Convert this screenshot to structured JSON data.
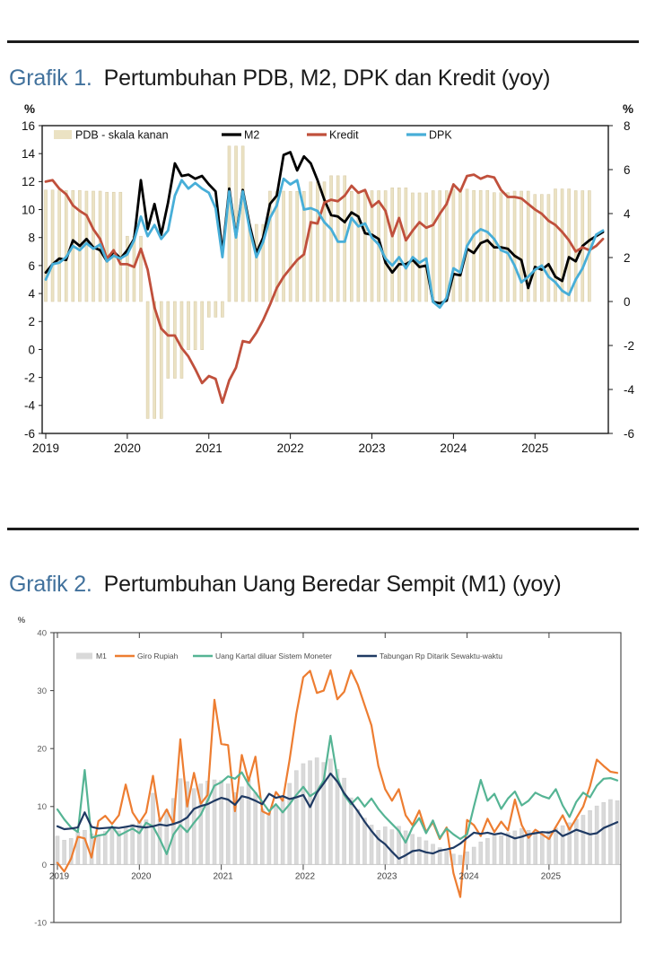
{
  "page": {
    "sections": [
      {
        "heading_prefix": "Grafik 1.",
        "heading": "Pertumbuhan PDB, M2, DPK dan Kredit (yoy)"
      },
      {
        "heading_prefix": "Grafik 2.",
        "heading": "Pertumbuhan Uang Beredar Sempit (M1) (yoy)"
      }
    ],
    "accent_color": "#41719c"
  },
  "chart_data": [
    {
      "type": "bar+line",
      "title": "Pertumbuhan PDB, M2, DPK dan Kredit (yoy)",
      "x_start": "2019-01",
      "x_freq": "monthly",
      "x_tick_labels": [
        "2019",
        "2020",
        "2021",
        "2022",
        "2023",
        "2024",
        "2025"
      ],
      "left_axis": {
        "label": "%",
        "min": -6,
        "max": 16,
        "tick_step": 2
      },
      "right_axis": {
        "label": "%",
        "min": -6,
        "max": 8,
        "tick_step": 2
      },
      "grid": false,
      "legend_position": "top-inside",
      "series": [
        {
          "name": "PDB - skala kanan",
          "type": "bar",
          "axis": "right",
          "freq": "quarterly",
          "color": "#ebe2c3",
          "edge_color": "#d9cdaa",
          "values": [
            5.07,
            5.05,
            5.02,
            4.97,
            2.97,
            -5.32,
            -3.49,
            -2.19,
            -0.71,
            7.07,
            3.51,
            5.02,
            5.01,
            5.44,
            5.72,
            5.01,
            5.04,
            5.17,
            4.94,
            5.04,
            5.11,
            5.05,
            4.95,
            5.02,
            4.87,
            5.12,
            5.04
          ]
        },
        {
          "name": "M2",
          "type": "line",
          "axis": "left",
          "color": "#000000",
          "values": [
            5.5,
            6.1,
            6.5,
            6.4,
            7.8,
            7.4,
            7.9,
            7.3,
            7.1,
            6.3,
            7.0,
            6.5,
            7.1,
            7.9,
            12.1,
            8.6,
            10.4,
            8.2,
            10.5,
            13.3,
            12.4,
            12.5,
            12.2,
            12.4,
            11.8,
            11.3,
            6.9,
            11.5,
            8.1,
            11.4,
            8.9,
            6.9,
            8.0,
            10.4,
            11.0,
            13.9,
            14.1,
            12.8,
            13.8,
            13.3,
            12.1,
            10.7,
            9.6,
            9.5,
            9.1,
            9.8,
            9.5,
            8.3,
            8.2,
            7.9,
            6.2,
            5.5,
            6.1,
            6.1,
            6.4,
            5.9,
            6.0,
            3.4,
            3.3,
            3.5,
            5.4,
            5.3,
            7.2,
            6.9,
            7.6,
            7.8,
            7.3,
            7.3,
            7.2,
            6.7,
            6.4,
            4.4,
            5.9,
            5.7,
            6.1,
            5.2,
            4.9,
            6.6,
            6.3,
            7.4,
            7.8,
            8.1,
            8.4
          ]
        },
        {
          "name": "Kredit",
          "type": "line",
          "axis": "left",
          "color": "#c0503c",
          "values": [
            12.0,
            12.1,
            11.5,
            11.1,
            10.3,
            9.9,
            9.6,
            8.6,
            7.9,
            6.5,
            7.1,
            6.1,
            6.1,
            5.9,
            7.2,
            5.7,
            3.0,
            1.5,
            1.0,
            1.0,
            0.1,
            -0.5,
            -1.4,
            -2.4,
            -1.9,
            -2.1,
            -3.8,
            -2.2,
            -1.3,
            0.6,
            0.5,
            1.2,
            2.1,
            3.2,
            4.4,
            5.2,
            5.8,
            6.4,
            6.8,
            9.1,
            9.0,
            10.5,
            10.7,
            10.6,
            11.0,
            11.7,
            11.2,
            11.4,
            10.2,
            10.6,
            9.9,
            8.1,
            9.4,
            7.8,
            8.5,
            9.1,
            8.7,
            8.9,
            9.7,
            10.4,
            11.8,
            11.3,
            12.4,
            12.5,
            12.2,
            12.4,
            12.3,
            11.4,
            10.9,
            10.9,
            10.8,
            10.4,
            10.0,
            9.7,
            9.2,
            8.9,
            8.4,
            7.8,
            7.0,
            7.3,
            7.1,
            7.4,
            7.9
          ]
        },
        {
          "name": "DPK",
          "type": "line",
          "axis": "left",
          "color": "#47aed8",
          "values": [
            5.0,
            6.1,
            6.2,
            6.6,
            7.4,
            7.1,
            7.6,
            7.2,
            7.5,
            6.3,
            6.7,
            6.5,
            6.8,
            7.8,
            9.5,
            8.1,
            8.9,
            7.9,
            8.5,
            11.0,
            12.1,
            11.5,
            11.9,
            11.5,
            11.2,
            10.1,
            6.6,
            11.3,
            8.0,
            11.3,
            8.6,
            6.6,
            7.7,
            9.4,
            10.3,
            12.2,
            11.8,
            12.1,
            10.0,
            10.1,
            9.9,
            9.1,
            8.6,
            7.7,
            7.7,
            9.4,
            8.8,
            9.0,
            8.0,
            7.5,
            6.5,
            6.0,
            6.6,
            5.8,
            6.6,
            6.2,
            6.5,
            3.4,
            3.0,
            3.7,
            5.8,
            5.5,
            7.4,
            8.2,
            8.6,
            8.4,
            7.9,
            7.1,
            6.9,
            6.0,
            4.8,
            5.2,
            5.7,
            6.0,
            5.2,
            4.8,
            4.2,
            3.9,
            5.0,
            5.8,
            7.0,
            8.2,
            8.5
          ]
        }
      ]
    },
    {
      "type": "bar+line",
      "title": "Pertumbuhan Uang Beredar Sempit (M1) (yoy)",
      "x_start": "2019-01",
      "x_freq": "monthly",
      "x_tick_labels": [
        "2019",
        "2020",
        "2021",
        "2022",
        "2023",
        "2024",
        "2025"
      ],
      "left_axis": {
        "label": "%",
        "min": -10,
        "max": 40,
        "tick_step": 10
      },
      "grid": false,
      "legend_position": "top-inside",
      "series": [
        {
          "name": "M1",
          "type": "bar",
          "axis": "left",
          "freq": "monthly",
          "color": "#d9d9d9",
          "edge_color": "#cfcfcf",
          "values": [
            4.9,
            4.2,
            4.5,
            5.6,
            5.9,
            5.3,
            5.1,
            5.7,
            6.0,
            5.8,
            6.6,
            7.0,
            7.4,
            7.7,
            12.3,
            7.8,
            9.4,
            11.4,
            14.8,
            14.3,
            13.1,
            13.9,
            14.4,
            14.6,
            14.5,
            13.9,
            12.4,
            13.4,
            14.7,
            12.4,
            9.6,
            8.9,
            10.1,
            11.2,
            14.0,
            16.2,
            17.4,
            17.9,
            18.4,
            17.6,
            18.2,
            16.4,
            14.9,
            11.5,
            9.5,
            8.0,
            6.8,
            5.9,
            6.5,
            6.0,
            6.6,
            5.8,
            5.2,
            4.7,
            4.1,
            3.5,
            2.9,
            2.3,
            1.8,
            1.6,
            2.2,
            3.0,
            3.9,
            4.5,
            5.2,
            5.0,
            5.5,
            5.8,
            6.2,
            5.9,
            5.6,
            5.3,
            5.8,
            6.3,
            6.7,
            7.2,
            7.8,
            8.5,
            9.3,
            10.1,
            10.7,
            11.2,
            11.0
          ]
        },
        {
          "name": "Giro Rupiah",
          "type": "line",
          "axis": "left",
          "color": "#ed7d31",
          "values": [
            0.3,
            -1.2,
            1.0,
            4.8,
            4.5,
            1.2,
            7.5,
            8.4,
            7.0,
            8.5,
            13.8,
            9.0,
            7.2,
            9.0,
            15.3,
            7.5,
            9.5,
            7.0,
            21.6,
            10.0,
            15.8,
            10.5,
            12.0,
            28.4,
            20.8,
            20.6,
            9.2,
            18.9,
            14.4,
            18.6,
            9.2,
            8.6,
            12.5,
            11.0,
            18.0,
            26.0,
            32.3,
            33.4,
            29.6,
            30.0,
            33.5,
            28.5,
            29.8,
            33.5,
            31.0,
            27.5,
            24.0,
            17.0,
            13.0,
            11.0,
            13.0,
            8.5,
            6.8,
            9.3,
            5.6,
            7.3,
            4.4,
            6.4,
            -1.5,
            -5.6,
            7.7,
            6.8,
            4.9,
            7.9,
            5.6,
            7.4,
            5.9,
            11.2,
            6.8,
            4.6,
            6.0,
            5.2,
            4.4,
            6.5,
            8.5,
            6.0,
            8.0,
            10.0,
            13.5,
            18.1,
            17.0,
            16.0,
            15.8
          ]
        },
        {
          "name": "Uang Kartal diluar Sistem Moneter",
          "type": "line",
          "axis": "left",
          "color": "#55b494",
          "values": [
            9.5,
            7.8,
            6.4,
            5.6,
            16.3,
            4.6,
            5.0,
            5.2,
            6.6,
            5.0,
            5.6,
            6.2,
            5.4,
            7.2,
            6.6,
            4.4,
            1.8,
            5.2,
            6.8,
            5.6,
            7.2,
            8.6,
            11.0,
            13.6,
            14.2,
            15.2,
            14.8,
            15.9,
            13.8,
            12.4,
            10.8,
            9.2,
            10.4,
            9.0,
            10.4,
            12.0,
            13.4,
            11.8,
            12.6,
            14.5,
            22.2,
            15.0,
            12.0,
            10.4,
            11.6,
            10.0,
            11.4,
            9.6,
            8.2,
            7.0,
            5.8,
            3.8,
            6.4,
            8.0,
            5.4,
            7.6,
            4.6,
            6.2,
            5.2,
            4.4,
            5.2,
            10.0,
            14.6,
            11.0,
            12.2,
            9.6,
            11.4,
            12.6,
            10.2,
            11.0,
            12.4,
            11.8,
            11.4,
            13.0,
            10.2,
            8.2,
            10.8,
            12.4,
            11.6,
            13.6,
            14.8,
            14.9,
            14.5
          ]
        },
        {
          "name": "Tabungan Rp Ditarik Sewaktu-waktu",
          "type": "line",
          "axis": "left",
          "color": "#1f3a63",
          "values": [
            6.6,
            6.1,
            6.2,
            6.4,
            9.0,
            6.5,
            6.2,
            6.3,
            6.4,
            6.3,
            6.5,
            6.7,
            6.5,
            6.4,
            6.6,
            6.9,
            6.7,
            7.0,
            7.4,
            8.1,
            9.6,
            10.1,
            10.4,
            11.0,
            11.5,
            11.2,
            10.3,
            11.8,
            11.5,
            11.0,
            10.4,
            12.2,
            11.5,
            11.8,
            11.3,
            11.6,
            12.0,
            9.9,
            12.4,
            14.0,
            15.7,
            14.3,
            12.3,
            10.8,
            9.2,
            7.4,
            5.8,
            4.4,
            3.5,
            2.2,
            1.0,
            1.6,
            2.3,
            2.5,
            2.1,
            1.9,
            2.4,
            2.6,
            2.9,
            3.6,
            4.6,
            5.5,
            5.3,
            5.5,
            5.2,
            5.4,
            5.0,
            4.5,
            4.8,
            5.2,
            5.4,
            5.6,
            5.5,
            5.9,
            4.9,
            5.4,
            6.0,
            5.6,
            5.2,
            5.4,
            6.3,
            6.8,
            7.3
          ]
        }
      ]
    }
  ]
}
